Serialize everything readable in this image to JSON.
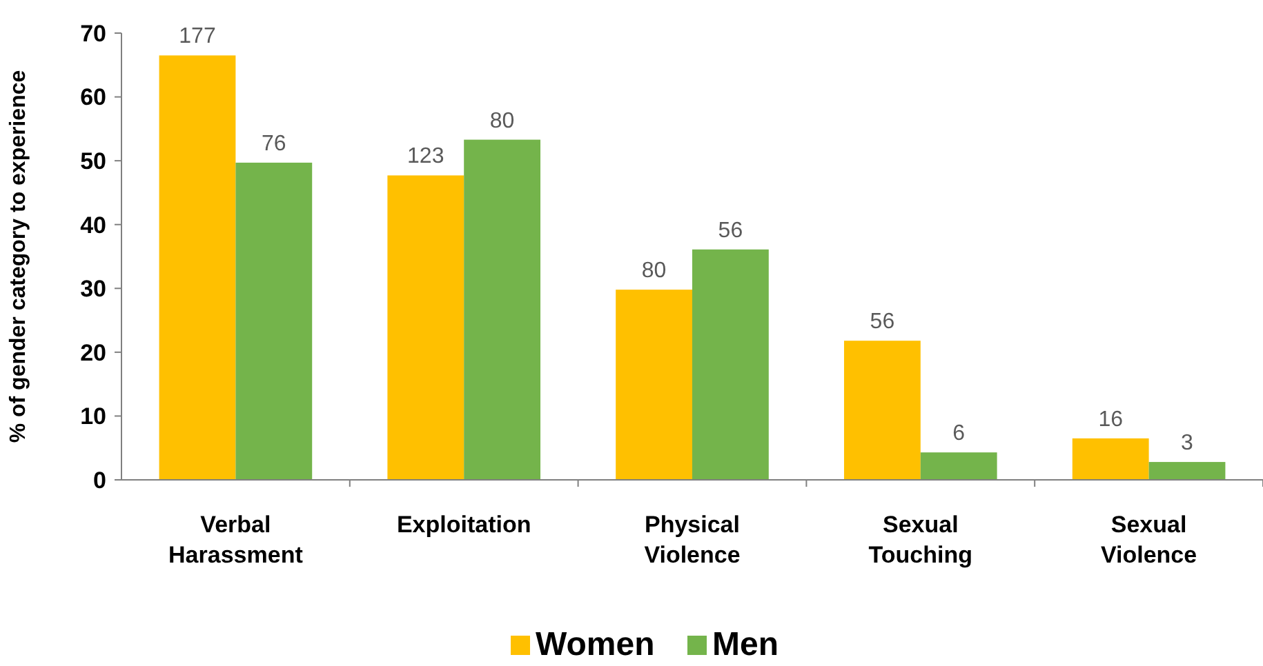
{
  "chart_data": {
    "type": "bar",
    "ylabel": "% of gender category to experience",
    "categories": [
      "Verbal Harassment",
      "Exploitation",
      "Physical Violence",
      "Sexual Touching",
      "Sexual Violence"
    ],
    "series": [
      {
        "name": "Women",
        "color": "#ffc000",
        "values": [
          66.5,
          47.7,
          29.8,
          21.8,
          6.5
        ]
      },
      {
        "name": "Men",
        "color": "#74b44b",
        "values": [
          49.7,
          53.3,
          36.1,
          4.3,
          2.8
        ]
      }
    ],
    "annotations": [
      {
        "text": "177",
        "x": "Verbal Harassment",
        "y": 66.5
      },
      {
        "text": "76",
        "x": "Verbal Harassment",
        "y": 49.7
      },
      {
        "text": "123",
        "x": "Exploitation",
        "y": 47.7
      },
      {
        "text": "80",
        "x": "Exploitation",
        "y": 53.3
      },
      {
        "text": "80",
        "x": "Physical Violence",
        "y": 29.8
      },
      {
        "text": "56",
        "x": "Physical Violence",
        "y": 36.1
      },
      {
        "text": "56",
        "x": "Sexual Touching",
        "y": 21.8
      },
      {
        "text": "6",
        "x": "Sexual Touching",
        "y": 4.3
      },
      {
        "text": "16",
        "x": "Sexual Violence",
        "y": 6.5
      },
      {
        "text": "3",
        "x": "Sexual Violence",
        "y": 2.8
      }
    ],
    "ylim": [
      0,
      70
    ],
    "yticks": [
      0,
      10,
      20,
      30,
      40,
      50,
      60,
      70
    ],
    "grid": false,
    "legend": "bottom"
  }
}
